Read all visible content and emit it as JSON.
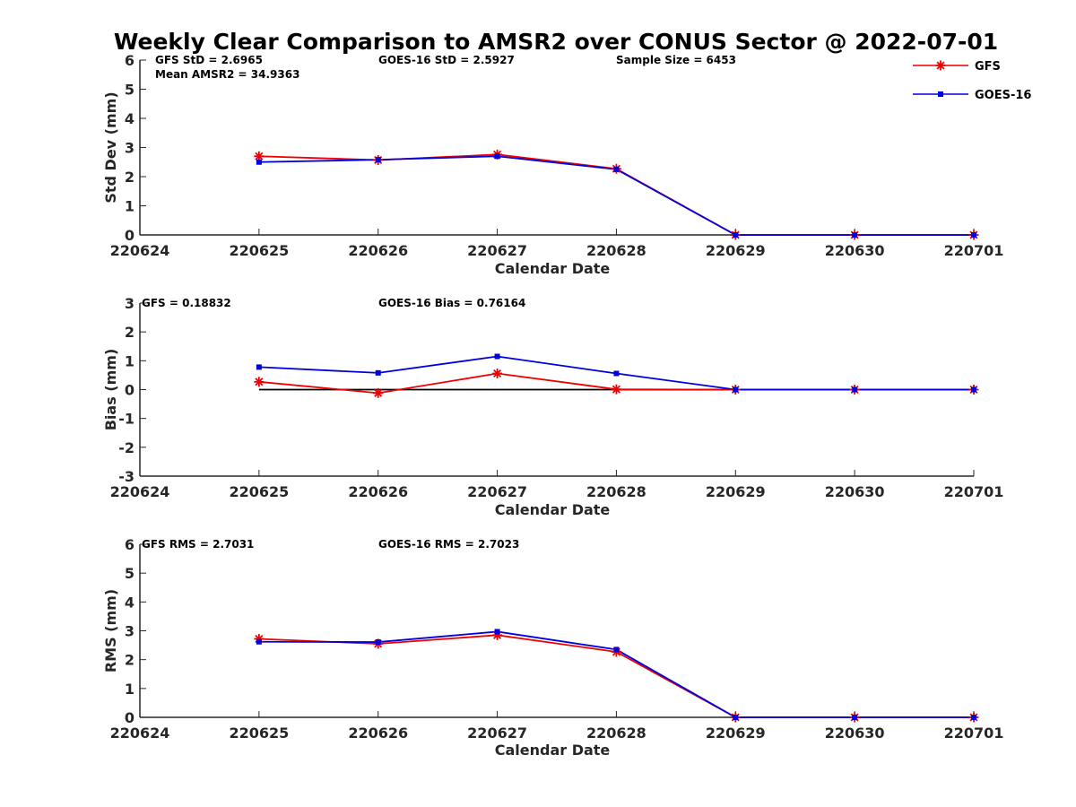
{
  "title": "Weekly Clear Comparison to AMSR2 over CONUS Sector @ 2022-07-01",
  "colors": {
    "GFS": "#ee0000",
    "GOES-16": "#0000dd",
    "axis": "#262626",
    "zero_line": "#000000"
  },
  "legend": {
    "placement": "top-right",
    "items": [
      {
        "name": "GFS",
        "marker": "asterisk"
      },
      {
        "name": "GOES-16",
        "marker": "square"
      }
    ]
  },
  "chart_data": [
    {
      "type": "line",
      "xlabel": "Calendar Date",
      "ylabel": "Std Dev (mm)",
      "ylim": [
        0,
        6
      ],
      "yticks": [
        "0",
        "1",
        "2",
        "3",
        "4",
        "5",
        "6"
      ],
      "categories": [
        "220624",
        "220625",
        "220626",
        "220627",
        "220628",
        "220629",
        "220630",
        "220701"
      ],
      "annotations": [
        "GFS StD = 2.6965",
        "GOES-16 StD = 2.5927",
        "Sample Size = 6453",
        "Mean AMSR2 = 34.9363"
      ],
      "series": [
        {
          "name": "GFS",
          "values": [
            null,
            2.7,
            2.57,
            2.76,
            2.27,
            0,
            0,
            0
          ]
        },
        {
          "name": "GOES-16",
          "values": [
            null,
            2.5,
            2.58,
            2.7,
            2.25,
            0,
            0,
            0
          ]
        }
      ]
    },
    {
      "type": "line",
      "xlabel": "Calendar Date",
      "ylabel": "Bias (mm)",
      "ylim": [
        -3,
        3
      ],
      "yticks": [
        "-3",
        "-2",
        "-1",
        "0",
        "1",
        "2",
        "3"
      ],
      "categories": [
        "220624",
        "220625",
        "220626",
        "220627",
        "220628",
        "220629",
        "220630",
        "220701"
      ],
      "annotations": [
        "GFS = 0.18832",
        "GOES-16 Bias  = 0.76164"
      ],
      "zero_line": true,
      "series": [
        {
          "name": "GFS",
          "values": [
            null,
            0.27,
            -0.12,
            0.56,
            0.01,
            0,
            0,
            0
          ]
        },
        {
          "name": "GOES-16",
          "values": [
            null,
            0.78,
            0.58,
            1.15,
            0.56,
            0,
            0,
            0
          ]
        }
      ]
    },
    {
      "type": "line",
      "xlabel": "Calendar Date",
      "ylabel": "RMS (mm)",
      "ylim": [
        0,
        6
      ],
      "yticks": [
        "0",
        "1",
        "2",
        "3",
        "4",
        "5",
        "6"
      ],
      "categories": [
        "220624",
        "220625",
        "220626",
        "220627",
        "220628",
        "220629",
        "220630",
        "220701"
      ],
      "annotations": [
        "GFS RMS = 2.7031",
        "GOES-16 RMS = 2.7023"
      ],
      "series": [
        {
          "name": "GFS",
          "values": [
            null,
            2.72,
            2.55,
            2.85,
            2.27,
            0,
            0,
            0
          ]
        },
        {
          "name": "GOES-16",
          "values": [
            null,
            2.62,
            2.61,
            2.97,
            2.35,
            0,
            0,
            0
          ]
        }
      ]
    }
  ]
}
